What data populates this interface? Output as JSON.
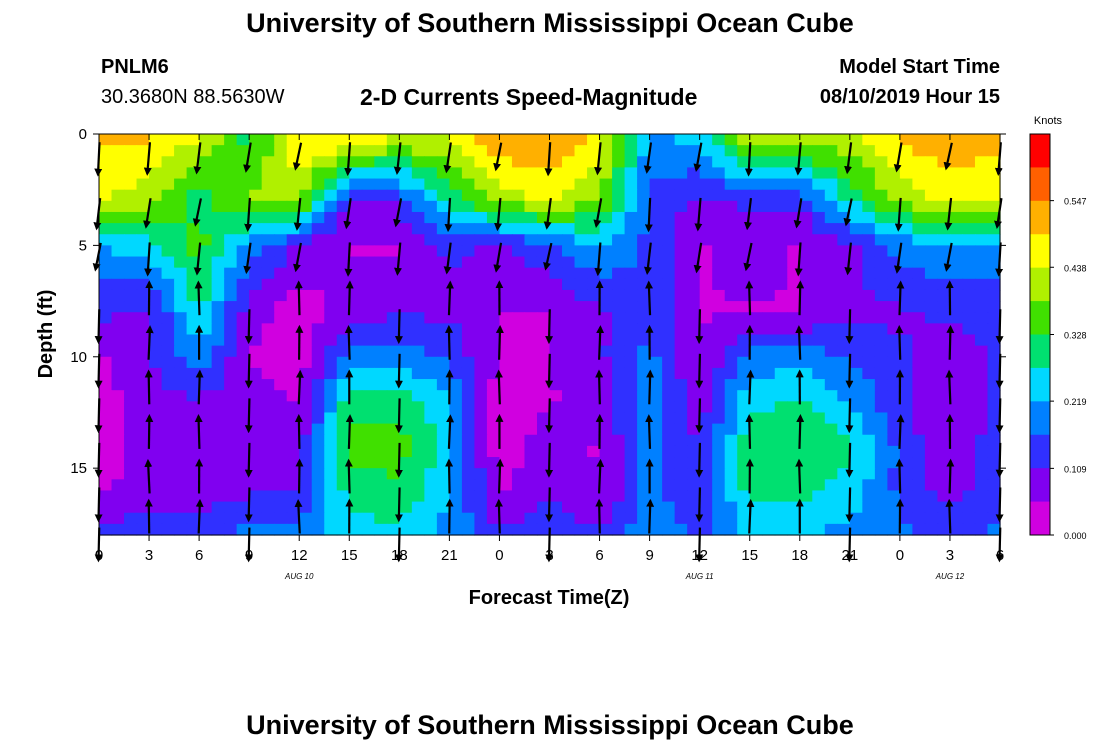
{
  "titles": {
    "top": "University of Southern Mississippi Ocean Cube",
    "bottom": "University of Southern Mississippi Ocean Cube"
  },
  "station": {
    "id": "PNLM6",
    "coords": "30.3680N 88.5630W"
  },
  "model": {
    "label": "Model Start Time",
    "start": "08/10/2019 Hour 15"
  },
  "chart_data": {
    "type": "heatmap",
    "title": "2-D Currents Speed-Magnitude",
    "xlabel": "Forecast Time(Z)",
    "ylabel": "Depth (ft)",
    "x_ticks": [
      "0",
      "3",
      "6",
      "9",
      "12",
      "15",
      "18",
      "21",
      "0",
      "3",
      "6",
      "9",
      "12",
      "15",
      "18",
      "21",
      "0",
      "3",
      "6"
    ],
    "x_range_hours": [
      0,
      54
    ],
    "date_labels": [
      {
        "label": "AUG 10",
        "hour": 12
      },
      {
        "label": "AUG 11",
        "hour": 36
      },
      {
        "label": "AUG 12",
        "hour": 51
      }
    ],
    "y_ticks": [
      "0",
      "5",
      "10",
      "15"
    ],
    "y_tick_values": [
      0,
      5,
      10,
      15
    ],
    "ylim": [
      0,
      18
    ],
    "colorbar": {
      "unit": "Knots",
      "ticks": [
        "0.547",
        "0.438",
        "0.328",
        "0.219",
        "0.109",
        "0.000"
      ],
      "min": 0.0,
      "max": 0.656,
      "colors": [
        "#d000e0",
        "#8000f0",
        "#3030ff",
        "#0080ff",
        "#00d8ff",
        "#00e070",
        "#40e000",
        "#b0f000",
        "#ffff00",
        "#ffb000",
        "#ff6000",
        "#ff0000"
      ]
    },
    "speed_knots_by_depth": [
      {
        "depth_ft": 0,
        "values": [
          0.5,
          0.5,
          0.45,
          0.3,
          0.5,
          0.52,
          0.45,
          0.45,
          0.55,
          0.55,
          0.48,
          0.2,
          0.25,
          0.45,
          0.45,
          0.42,
          0.5,
          0.55,
          0.5
        ]
      },
      {
        "depth_ft": 3,
        "values": [
          0.45,
          0.4,
          0.3,
          0.4,
          0.4,
          0.1,
          0.12,
          0.3,
          0.4,
          0.45,
          0.38,
          0.15,
          0.1,
          0.12,
          0.12,
          0.28,
          0.4,
          0.45,
          0.45
        ]
      },
      {
        "depth_ft": 5,
        "values": [
          0.22,
          0.25,
          0.35,
          0.2,
          0.1,
          0.05,
          0.05,
          0.12,
          0.1,
          0.15,
          0.22,
          0.15,
          0.05,
          0.08,
          0.05,
          0.1,
          0.18,
          0.22,
          0.2
        ]
      },
      {
        "depth_ft": 8,
        "values": [
          0.12,
          0.1,
          0.28,
          0.08,
          0.02,
          0.08,
          0.1,
          0.1,
          0.05,
          0.05,
          0.1,
          0.15,
          0.05,
          0.05,
          0.05,
          0.1,
          0.1,
          0.12,
          0.12
        ]
      },
      {
        "depth_ft": 10,
        "values": [
          0.05,
          0.1,
          0.2,
          0.05,
          0.02,
          0.18,
          0.2,
          0.15,
          0.05,
          0.05,
          0.1,
          0.18,
          0.05,
          0.18,
          0.2,
          0.15,
          0.12,
          0.08,
          0.12
        ]
      },
      {
        "depth_ft": 12,
        "values": [
          0.02,
          0.1,
          0.1,
          0.08,
          0.05,
          0.3,
          0.3,
          0.22,
          0.02,
          0.05,
          0.08,
          0.2,
          0.08,
          0.25,
          0.28,
          0.22,
          0.12,
          0.05,
          0.12
        ]
      },
      {
        "depth_ft": 14,
        "values": [
          0.02,
          0.08,
          0.05,
          0.1,
          0.08,
          0.35,
          0.35,
          0.25,
          0.02,
          0.08,
          0.05,
          0.2,
          0.1,
          0.32,
          0.32,
          0.28,
          0.15,
          0.05,
          0.15
        ]
      },
      {
        "depth_ft": 16,
        "values": [
          0.05,
          0.08,
          0.08,
          0.1,
          0.1,
          0.3,
          0.32,
          0.22,
          0.05,
          0.1,
          0.05,
          0.18,
          0.12,
          0.3,
          0.3,
          0.25,
          0.15,
          0.08,
          0.15
        ]
      },
      {
        "depth_ft": 18,
        "values": [
          0.12,
          0.15,
          0.15,
          0.18,
          0.2,
          0.25,
          0.25,
          0.2,
          0.12,
          0.15,
          0.12,
          0.2,
          0.15,
          0.22,
          0.22,
          0.2,
          0.18,
          0.15,
          0.18
        ]
      }
    ],
    "vectors": "current direction arrows shown at each forecast column and depth level"
  }
}
